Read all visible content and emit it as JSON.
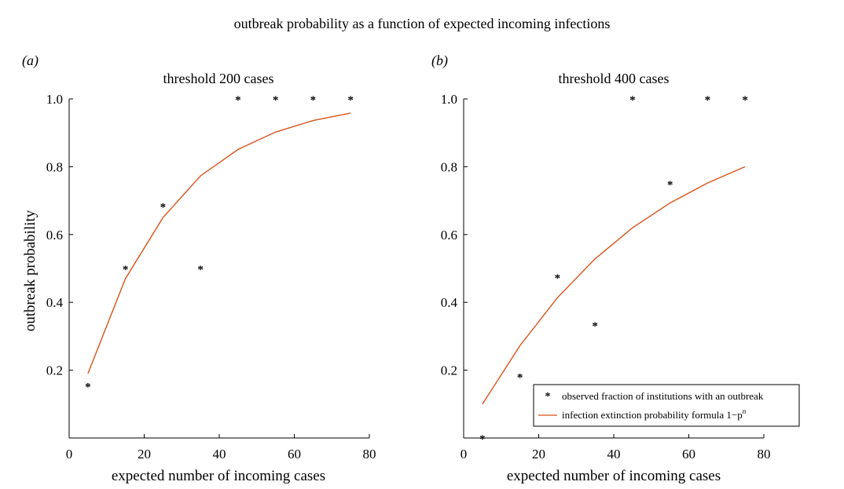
{
  "figure_title": "outbreak probability as a function of expected incoming infections",
  "colors": {
    "observed": "#1f77b4",
    "formula": "#d95319",
    "axis": "#000000"
  },
  "chart_data": [
    {
      "type": "scatter",
      "panel_label": "(a)",
      "title": "threshold 200 cases",
      "xlabel": "expected number of incoming cases",
      "ylabel": "outbreak probability",
      "xlim": [
        0,
        80
      ],
      "ylim": [
        0,
        1
      ],
      "xticks": [
        0,
        20,
        40,
        60,
        80
      ],
      "yticks": [
        0.2,
        0.4,
        0.6,
        0.8,
        1.0
      ],
      "ytick_labels": [
        "0.2",
        "0.4",
        "0.6",
        "0.8",
        "1.0"
      ],
      "series": [
        {
          "kind": "markers",
          "x": [
            5,
            15,
            25,
            35,
            45,
            55,
            65,
            75
          ],
          "y": [
            0.154,
            0.5,
            0.684,
            0.5,
            1.0,
            1.0,
            1.0,
            1.0
          ]
        },
        {
          "kind": "line",
          "x": [
            5,
            15,
            25,
            35,
            45,
            55,
            65,
            75
          ],
          "y": [
            0.19,
            0.47,
            0.65,
            0.773,
            0.851,
            0.902,
            0.936,
            0.958
          ]
        }
      ]
    },
    {
      "type": "scatter",
      "panel_label": "(b)",
      "title": "threshold 400 cases",
      "xlabel": "expected number of incoming cases",
      "ylabel": "",
      "xlim": [
        0,
        80
      ],
      "ylim": [
        0,
        1
      ],
      "xticks": [
        0,
        20,
        40,
        60,
        80
      ],
      "yticks": [
        0.2,
        0.4,
        0.6,
        0.8,
        1.0
      ],
      "ytick_labels": [
        "0.2",
        "0.4",
        "0.6",
        "0.8",
        "1.0"
      ],
      "legend": {
        "position": "bottom-right",
        "entries": [
          {
            "label": "observed fraction of institutions with an outbreak"
          },
          {
            "label": "infection extinction probability formula 1−p",
            "superscript": "n"
          }
        ]
      },
      "series": [
        {
          "kind": "markers",
          "x": [
            5,
            15,
            25,
            35,
            45,
            55,
            65,
            75
          ],
          "y": [
            0.0,
            0.182,
            0.474,
            0.333,
            1.0,
            0.75,
            1.0,
            1.0
          ]
        },
        {
          "kind": "line",
          "x": [
            5,
            15,
            25,
            35,
            45,
            55,
            65,
            75
          ],
          "y": [
            0.1,
            0.272,
            0.414,
            0.528,
            0.62,
            0.693,
            0.752,
            0.8
          ]
        }
      ]
    }
  ]
}
